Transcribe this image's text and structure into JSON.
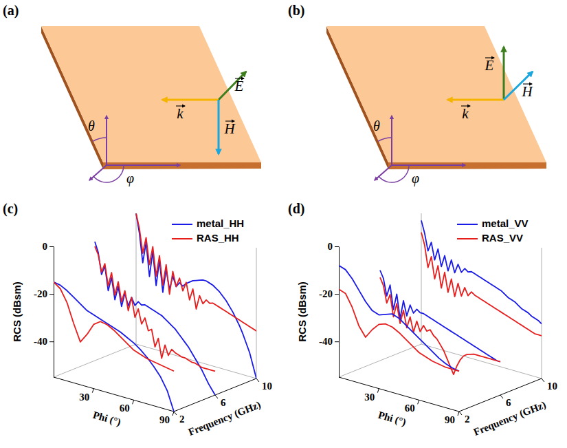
{
  "diagrams": [
    {
      "label": "(a)",
      "vectors": [
        "E",
        "k",
        "H"
      ],
      "angles": [
        "θ",
        "φ"
      ]
    },
    {
      "label": "(b)",
      "vectors": [
        "E",
        "k",
        "H"
      ],
      "angles": [
        "θ",
        "φ"
      ]
    }
  ],
  "chart_data": [
    {
      "type": "line",
      "label": "(c)",
      "xlabel": "Phi (°)",
      "ylabel": "RCS (dBsm)",
      "zlabel": "Frequency (GHz)",
      "xlim": [
        0,
        90
      ],
      "xticks": [
        30,
        60,
        90
      ],
      "ylim": [
        -55,
        0
      ],
      "yticks": [
        0,
        -20,
        -40
      ],
      "zlim": [
        2,
        10
      ],
      "zticks": [
        2,
        6,
        10
      ],
      "legend": "upper right",
      "series": [
        {
          "name": "metal_HH",
          "color": "#1a1ae6",
          "curves": [
            {
              "frequency": 2,
              "x": [
                0,
                5,
                10,
                15,
                20,
                25,
                30,
                35,
                40,
                45,
                50,
                55,
                60,
                65,
                70,
                75,
                80,
                85,
                90
              ],
              "values": [
                -15,
                -15.5,
                -17,
                -19,
                -21,
                -23,
                -24,
                -25,
                -26,
                -27,
                -28,
                -29.5,
                -31,
                -33,
                -35.5,
                -38.5,
                -42,
                -47,
                -55
              ]
            },
            {
              "frequency": 6,
              "x": [
                0,
                2.5,
                5,
                7.5,
                10,
                12.5,
                15,
                17.5,
                20,
                22.5,
                25,
                27.5,
                30,
                32.5,
                35,
                37.5,
                40,
                42.5,
                45,
                47.5,
                50,
                52.5,
                55,
                57.5,
                60,
                62.5,
                65,
                67.5,
                70,
                72.5,
                75,
                77.5,
                80,
                82.5,
                85,
                87.5,
                90
              ],
              "values": [
                -5,
                -9,
                -18,
                -14,
                -24,
                -18,
                -27,
                -21,
                -29,
                -23,
                -28,
                -24,
                -27,
                -25,
                -26,
                -25.5,
                -26,
                -26.5,
                -27,
                -27.5,
                -28,
                -29,
                -30,
                -31,
                -32,
                -33.5,
                -35,
                -36.5,
                -38,
                -40,
                -42,
                -44,
                -46,
                -48.5,
                -51,
                -53,
                -55
              ]
            },
            {
              "frequency": 10,
              "x": [
                0,
                2.5,
                5,
                7.5,
                10,
                12.5,
                15,
                17.5,
                20,
                22.5,
                25,
                27.5,
                30,
                32.5,
                35,
                37.5,
                40,
                42.5,
                45,
                47.5,
                50,
                52.5,
                55,
                57.5,
                60,
                62.5,
                65,
                67.5,
                70,
                72.5,
                75,
                77.5,
                80,
                82.5,
                85,
                87.5,
                90
              ],
              "values": [
                0,
                -8,
                -20,
                -11,
                -25,
                -14,
                -28,
                -17,
                -30,
                -20,
                -28,
                -22,
                -26,
                -24,
                -25,
                -23.5,
                -22.5,
                -21.5,
                -21,
                -20.5,
                -20,
                -20,
                -20.5,
                -21,
                -22,
                -23,
                -24.5,
                -26,
                -28,
                -30,
                -32.5,
                -35,
                -38,
                -41.5,
                -45,
                -50,
                -55
              ]
            }
          ]
        },
        {
          "name": "RAS_HH",
          "color": "#e61e1e",
          "curves": [
            {
              "frequency": 2,
              "x": [
                0,
                5,
                10,
                15,
                20,
                25,
                30,
                35,
                40,
                45,
                50,
                55,
                60,
                65,
                70,
                75,
                80,
                85,
                90
              ],
              "values": [
                -15,
                -17,
                -22,
                -30,
                -37,
                -33,
                -28,
                -26,
                -26.5,
                -28,
                -30,
                -32,
                -34,
                -35,
                -36,
                -36.5,
                -37,
                -37.5,
                -38
              ]
            },
            {
              "frequency": 6,
              "x": [
                0,
                2.5,
                5,
                7.5,
                10,
                12.5,
                15,
                17.5,
                20,
                22.5,
                25,
                27.5,
                30,
                32.5,
                35,
                37.5,
                40,
                42.5,
                45,
                47.5,
                50,
                52.5,
                55,
                57.5,
                60,
                62.5,
                65,
                67.5,
                70,
                72.5,
                75,
                77.5,
                80,
                82.5,
                85,
                87.5,
                90
              ],
              "values": [
                -7,
                -10,
                -17,
                -13,
                -22,
                -16,
                -25,
                -19,
                -27,
                -22,
                -30,
                -24,
                -32,
                -28,
                -34,
                -31,
                -36,
                -35,
                -42,
                -38,
                -46,
                -40,
                -44,
                -41,
                -42,
                -42.5,
                -43,
                -43,
                -43.5,
                -44,
                -44,
                -44.5,
                -45,
                -45,
                -45,
                -45,
                -45
              ]
            },
            {
              "frequency": 10,
              "x": [
                0,
                2.5,
                5,
                7.5,
                10,
                12.5,
                15,
                17.5,
                20,
                22.5,
                25,
                27.5,
                30,
                32.5,
                35,
                37.5,
                40,
                42.5,
                45,
                47.5,
                50,
                52.5,
                55,
                57.5,
                60,
                62.5,
                65,
                67.5,
                70,
                72.5,
                75,
                77.5,
                80,
                82.5,
                85,
                87.5,
                90
              ],
              "values": [
                0,
                -6,
                -16,
                -9,
                -20,
                -12,
                -24,
                -15,
                -27,
                -18,
                -30,
                -20,
                -26,
                -22,
                -27,
                -23,
                -30,
                -25,
                -33,
                -27,
                -30,
                -28,
                -29,
                -28.5,
                -29,
                -29.5,
                -30,
                -30.5,
                -31,
                -31.5,
                -32,
                -32.5,
                -33,
                -33.5,
                -34,
                -34.5,
                -35
              ]
            }
          ]
        }
      ]
    },
    {
      "type": "line",
      "label": "(d)",
      "xlabel": "Phi (°)",
      "ylabel": "RCS (dBsm)",
      "zlabel": "Frequency (GHz)",
      "xlim": [
        0,
        90
      ],
      "xticks": [
        30,
        60,
        90
      ],
      "ylim": [
        -55,
        0
      ],
      "yticks": [
        0,
        -20,
        -40
      ],
      "zlim": [
        2,
        10
      ],
      "zticks": [
        2,
        6,
        10
      ],
      "legend": "upper right",
      "series": [
        {
          "name": "metal_VV",
          "color": "#1a1ae6",
          "curves": [
            {
              "frequency": 2,
              "x": [
                0,
                5,
                10,
                15,
                20,
                25,
                30,
                35,
                40,
                45,
                50,
                55,
                60,
                65,
                70,
                75,
                80,
                85,
                90
              ],
              "values": [
                -8,
                -9,
                -12,
                -16,
                -20,
                -23,
                -24,
                -23,
                -22,
                -23,
                -25,
                -27,
                -29,
                -31,
                -33,
                -35,
                -36.5,
                -37.5,
                -38
              ]
            },
            {
              "frequency": 6,
              "x": [
                0,
                2.5,
                5,
                7.5,
                10,
                12.5,
                15,
                17.5,
                20,
                22.5,
                25,
                27.5,
                30,
                32.5,
                35,
                37.5,
                40,
                42.5,
                45,
                47.5,
                50,
                52.5,
                55,
                57.5,
                60,
                62.5,
                65,
                67.5,
                70,
                72.5,
                75,
                77.5,
                80,
                82.5,
                85,
                87.5,
                90
              ],
              "values": [
                -17,
                -20,
                -27,
                -22,
                -32,
                -25,
                -35,
                -27,
                -33,
                -28,
                -31,
                -29,
                -30,
                -30,
                -30.5,
                -31,
                -31.5,
                -32,
                -32.5,
                -33,
                -33.5,
                -34,
                -34.5,
                -35,
                -35.5,
                -36,
                -36.5,
                -37,
                -37.5,
                -38,
                -38.5,
                -39,
                -39.5,
                -40,
                -40.5,
                -41,
                -41
              ]
            },
            {
              "frequency": 10,
              "x": [
                0,
                2.5,
                5,
                7.5,
                10,
                12.5,
                15,
                17.5,
                20,
                22.5,
                25,
                27.5,
                30,
                32.5,
                35,
                37.5,
                40,
                42.5,
                45,
                47.5,
                50,
                52.5,
                55,
                57.5,
                60,
                62.5,
                65,
                67.5,
                70,
                72.5,
                75,
                77.5,
                80,
                82.5,
                85,
                87.5,
                90
              ],
              "values": [
                -3,
                -8,
                -15,
                -11,
                -18,
                -13,
                -20,
                -15,
                -21,
                -16,
                -21,
                -17,
                -20,
                -18,
                -19,
                -18.5,
                -19,
                -19.5,
                -20,
                -20.5,
                -21,
                -21.5,
                -22,
                -22.5,
                -23,
                -24,
                -25,
                -25.5,
                -26,
                -27,
                -28,
                -28.5,
                -29,
                -30,
                -30.5,
                -31,
                -32
              ]
            }
          ]
        },
        {
          "name": "RAS_VV",
          "color": "#e61e1e",
          "curves": [
            {
              "frequency": 2,
              "x": [
                0,
                5,
                10,
                15,
                20,
                25,
                30,
                35,
                40,
                45,
                50,
                55,
                60,
                65,
                70,
                75,
                80,
                85,
                90
              ],
              "values": [
                -18,
                -19,
                -24,
                -31,
                -35,
                -31,
                -28,
                -27,
                -27.5,
                -29,
                -31,
                -33,
                -35,
                -36,
                -37,
                -37.5,
                -38,
                -38,
                -38
              ]
            },
            {
              "frequency": 6,
              "x": [
                0,
                2.5,
                5,
                7.5,
                10,
                12.5,
                15,
                17.5,
                20,
                22.5,
                25,
                27.5,
                30,
                32.5,
                35,
                37.5,
                40,
                42.5,
                45,
                47.5,
                50,
                52.5,
                55,
                57.5,
                60,
                62.5,
                65,
                67.5,
                70,
                72.5,
                75,
                77.5,
                80,
                82.5,
                85,
                87.5,
                90
              ],
              "values": [
                -20,
                -23,
                -30,
                -26,
                -35,
                -29,
                -37,
                -31,
                -38,
                -33,
                -39,
                -34,
                -38,
                -35,
                -37,
                -36,
                -38,
                -39,
                -41,
                -43,
                -46,
                -49,
                -52,
                -48,
                -45,
                -43,
                -42,
                -41.5,
                -41,
                -41,
                -41,
                -41,
                -41,
                -41,
                -41,
                -41,
                -41
              ]
            },
            {
              "frequency": 10,
              "x": [
                0,
                2.5,
                5,
                7.5,
                10,
                12.5,
                15,
                17.5,
                20,
                22.5,
                25,
                27.5,
                30,
                32.5,
                35,
                37.5,
                40,
                42.5,
                45,
                47.5,
                50,
                52.5,
                55,
                57.5,
                60,
                62.5,
                65,
                67.5,
                70,
                72.5,
                75,
                77.5,
                80,
                82.5,
                85,
                87.5,
                90
              ],
              "values": [
                -8,
                -13,
                -22,
                -17,
                -26,
                -20,
                -29,
                -22,
                -30,
                -24,
                -31,
                -25,
                -30,
                -26,
                -29,
                -27,
                -28,
                -28.5,
                -29,
                -29.5,
                -30,
                -30.5,
                -31,
                -31.5,
                -32,
                -32.5,
                -33,
                -33.5,
                -34,
                -34.5,
                -35,
                -35.5,
                -36,
                -36.5,
                -37,
                -37,
                -37
              ]
            }
          ]
        }
      ]
    }
  ]
}
